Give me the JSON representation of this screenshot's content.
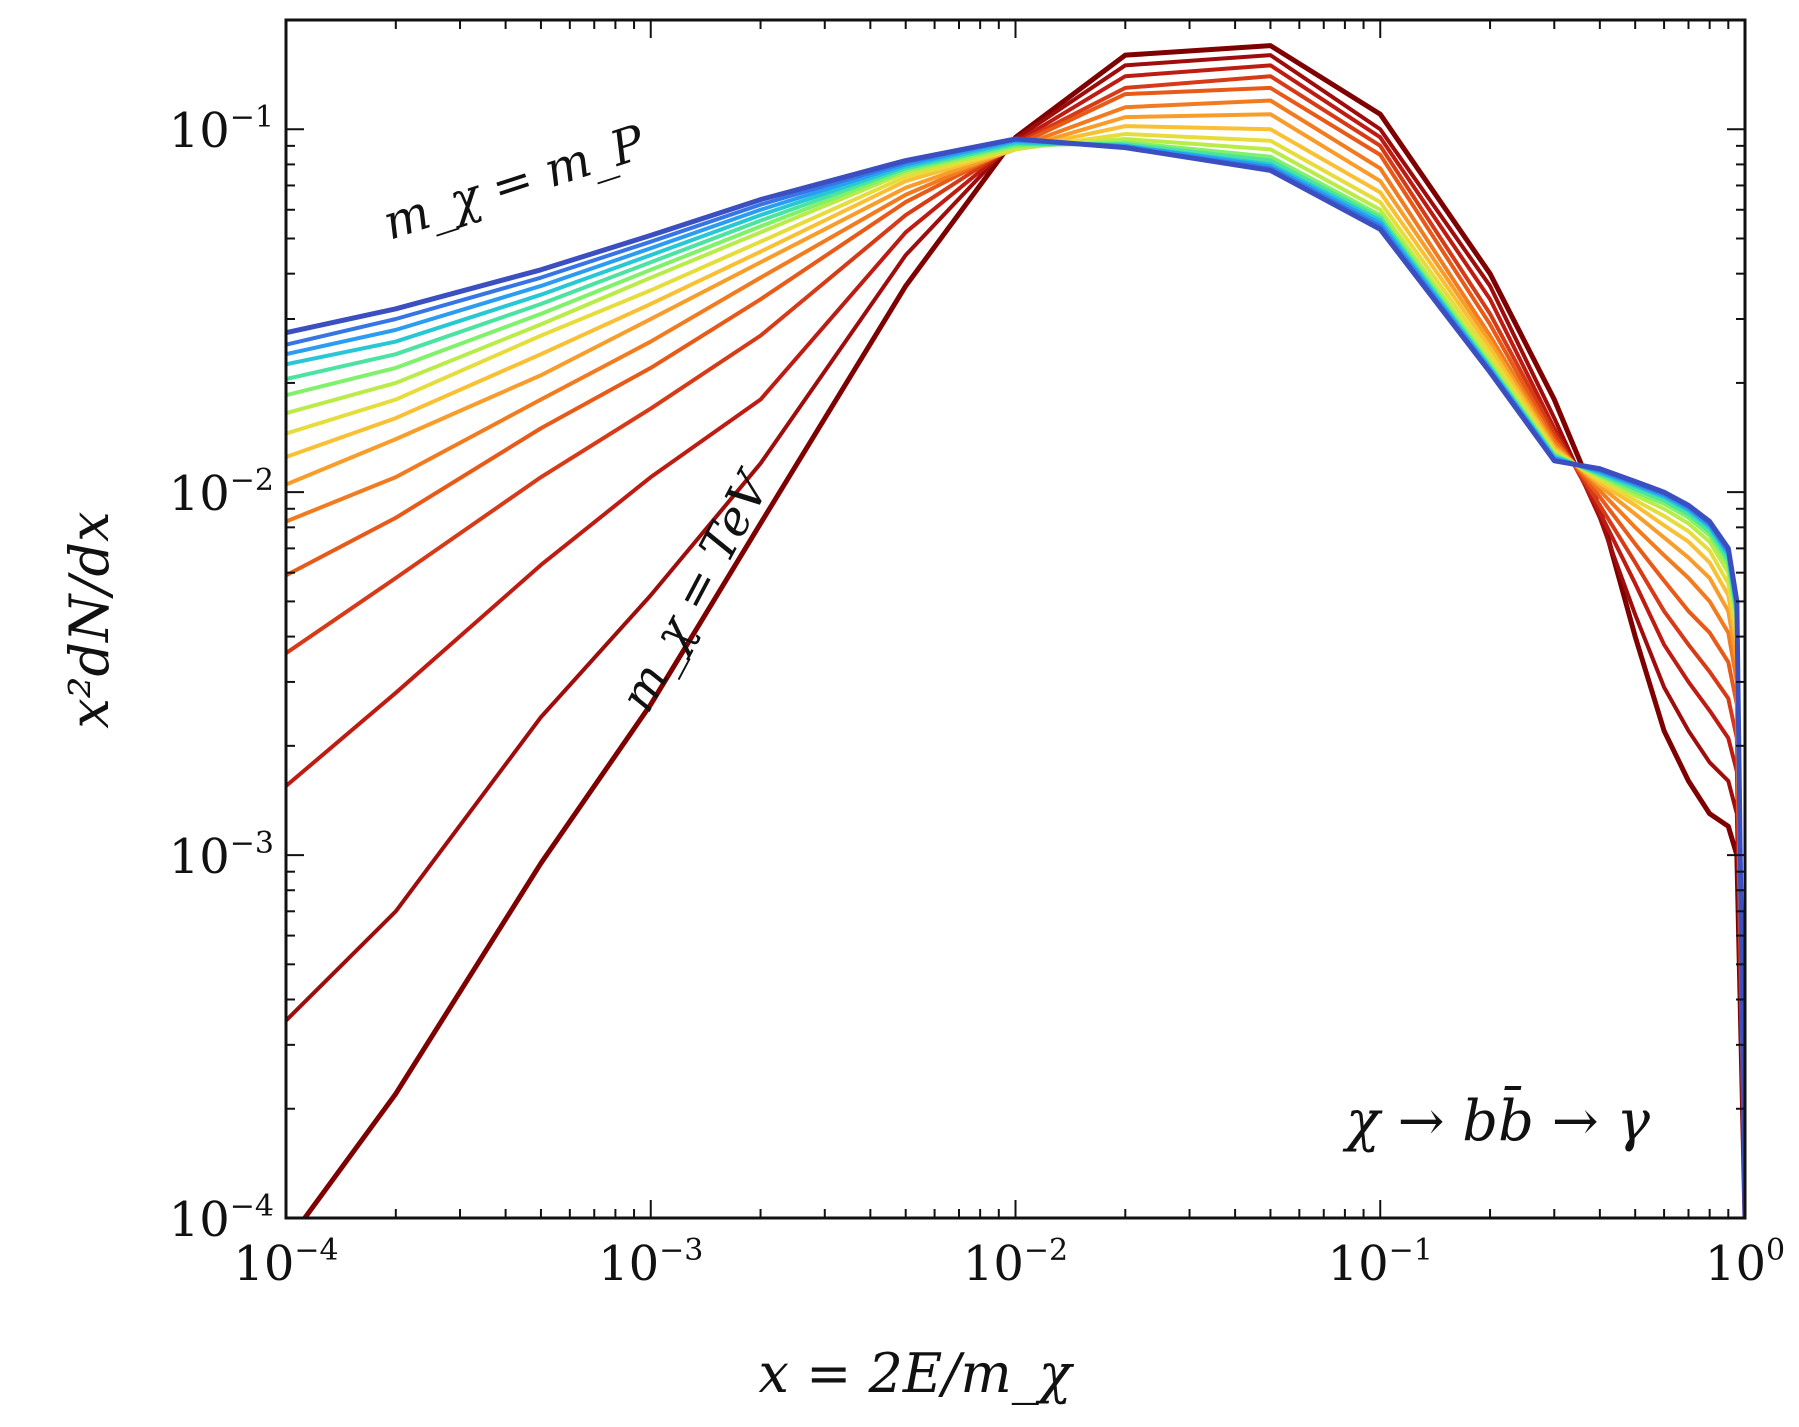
{
  "chart_data": {
    "type": "line",
    "xlabel": "x = 2E/m_χ",
    "ylabel": "x²dN/dx",
    "x_scale": "log",
    "y_scale": "log",
    "xlim": [
      0.0001,
      1
    ],
    "ylim": [
      0.0001,
      0.2
    ],
    "grid": false,
    "legend": "none",
    "x_ticks": [
      {
        "value": 0.0001,
        "base": "10",
        "exp": "−4"
      },
      {
        "value": 0.001,
        "base": "10",
        "exp": "−3"
      },
      {
        "value": 0.01,
        "base": "10",
        "exp": "−2"
      },
      {
        "value": 0.1,
        "base": "10",
        "exp": "−1"
      },
      {
        "value": 1,
        "base": "10",
        "exp": "0"
      }
    ],
    "y_ticks": [
      {
        "value": 0.1,
        "base": "10",
        "exp": "−1"
      },
      {
        "value": 0.01,
        "base": "10",
        "exp": "−2"
      },
      {
        "value": 0.001,
        "base": "10",
        "exp": "−3"
      },
      {
        "value": 0.0001,
        "base": "10",
        "exp": "−4"
      }
    ],
    "annotations": {
      "planck": "m_χ = m_P",
      "tev": "m_χ = TeV",
      "process": "χ → bb̄ → γ"
    },
    "series": [
      {
        "color": "#7f0000",
        "x": [
          0.0001,
          0.0002,
          0.0005,
          0.001,
          0.002,
          0.005,
          0.01,
          0.02,
          0.05,
          0.1,
          0.2,
          0.3,
          0.4,
          0.5,
          0.6,
          0.7,
          0.8,
          0.9,
          0.95,
          1
        ],
        "y": [
          8.5e-05,
          0.00022,
          0.00095,
          0.0026,
          0.0082,
          0.037,
          0.095,
          0.16,
          0.17,
          0.11,
          0.04,
          0.018,
          0.009,
          0.004,
          0.0022,
          0.0016,
          0.0013,
          0.0012,
          0.001,
          0.0001
        ]
      },
      {
        "color": "#9f0c0c",
        "x": [
          0.0001,
          0.0002,
          0.0005,
          0.001,
          0.002,
          0.005,
          0.01,
          0.02,
          0.05,
          0.1,
          0.2,
          0.3,
          0.4,
          0.5,
          0.6,
          0.7,
          0.8,
          0.9,
          0.95,
          1
        ],
        "y": [
          0.00035,
          0.0007,
          0.0024,
          0.0052,
          0.012,
          0.045,
          0.094,
          0.15,
          0.16,
          0.1,
          0.037,
          0.016,
          0.0085,
          0.0046,
          0.0029,
          0.0022,
          0.0018,
          0.0016,
          0.0013,
          0.0001
        ]
      },
      {
        "color": "#be1c12",
        "x": [
          0.0001,
          0.0002,
          0.0005,
          0.001,
          0.002,
          0.005,
          0.01,
          0.02,
          0.05,
          0.1,
          0.2,
          0.3,
          0.4,
          0.5,
          0.6,
          0.7,
          0.8,
          0.9,
          0.95,
          1
        ],
        "y": [
          0.00155,
          0.0028,
          0.0063,
          0.011,
          0.018,
          0.052,
          0.092,
          0.14,
          0.15,
          0.095,
          0.034,
          0.015,
          0.0088,
          0.0056,
          0.0038,
          0.003,
          0.0025,
          0.0021,
          0.0017,
          0.0001
        ]
      },
      {
        "color": "#d63a16",
        "x": [
          0.0001,
          0.0002,
          0.0005,
          0.001,
          0.002,
          0.005,
          0.01,
          0.02,
          0.05,
          0.1,
          0.2,
          0.3,
          0.4,
          0.5,
          0.6,
          0.7,
          0.8,
          0.9,
          0.95,
          1
        ],
        "y": [
          0.0036,
          0.0058,
          0.011,
          0.017,
          0.027,
          0.058,
          0.091,
          0.13,
          0.14,
          0.09,
          0.031,
          0.0145,
          0.0092,
          0.0064,
          0.0047,
          0.0038,
          0.0032,
          0.0027,
          0.0021,
          0.0001
        ]
      },
      {
        "color": "#e85a18",
        "x": [
          0.0001,
          0.0002,
          0.0005,
          0.001,
          0.002,
          0.005,
          0.01,
          0.02,
          0.05,
          0.1,
          0.2,
          0.3,
          0.4,
          0.5,
          0.6,
          0.7,
          0.8,
          0.9,
          0.95,
          1
        ],
        "y": [
          0.0059,
          0.0085,
          0.015,
          0.022,
          0.034,
          0.063,
          0.09,
          0.125,
          0.13,
          0.085,
          0.029,
          0.014,
          0.0097,
          0.0072,
          0.0057,
          0.0047,
          0.0041,
          0.0034,
          0.0026,
          0.0001
        ]
      },
      {
        "color": "#f27b1f",
        "x": [
          0.0001,
          0.0002,
          0.0005,
          0.001,
          0.002,
          0.005,
          0.01,
          0.02,
          0.05,
          0.1,
          0.2,
          0.3,
          0.4,
          0.5,
          0.6,
          0.7,
          0.8,
          0.9,
          0.95,
          1
        ],
        "y": [
          0.0083,
          0.011,
          0.018,
          0.026,
          0.039,
          0.066,
          0.089,
          0.115,
          0.12,
          0.078,
          0.027,
          0.0137,
          0.0101,
          0.008,
          0.0067,
          0.0058,
          0.005,
          0.0041,
          0.003,
          0.0001
        ]
      },
      {
        "color": "#f89d2a",
        "x": [
          0.0001,
          0.0002,
          0.0005,
          0.001,
          0.002,
          0.005,
          0.01,
          0.02,
          0.05,
          0.1,
          0.2,
          0.3,
          0.4,
          0.5,
          0.6,
          0.7,
          0.8,
          0.9,
          0.95,
          1
        ],
        "y": [
          0.0105,
          0.014,
          0.021,
          0.03,
          0.043,
          0.069,
          0.088,
          0.108,
          0.11,
          0.072,
          0.026,
          0.0134,
          0.0104,
          0.0087,
          0.0075,
          0.0066,
          0.0058,
          0.0047,
          0.0034,
          0.0001
        ]
      },
      {
        "color": "#f9c033",
        "x": [
          0.0001,
          0.0002,
          0.0005,
          0.001,
          0.002,
          0.005,
          0.01,
          0.02,
          0.05,
          0.1,
          0.2,
          0.3,
          0.4,
          0.5,
          0.6,
          0.7,
          0.8,
          0.9,
          0.95,
          1
        ],
        "y": [
          0.0125,
          0.016,
          0.024,
          0.033,
          0.046,
          0.072,
          0.088,
          0.102,
          0.1,
          0.067,
          0.025,
          0.0132,
          0.0106,
          0.0092,
          0.0081,
          0.0073,
          0.0064,
          0.0052,
          0.0038,
          0.0001
        ]
      },
      {
        "color": "#e6dd3c",
        "x": [
          0.0001,
          0.0002,
          0.0005,
          0.001,
          0.002,
          0.005,
          0.01,
          0.02,
          0.05,
          0.1,
          0.2,
          0.3,
          0.4,
          0.5,
          0.6,
          0.7,
          0.8,
          0.9,
          0.95,
          1
        ],
        "y": [
          0.0145,
          0.018,
          0.027,
          0.036,
          0.049,
          0.074,
          0.088,
          0.097,
          0.093,
          0.063,
          0.024,
          0.013,
          0.0108,
          0.0095,
          0.0086,
          0.0078,
          0.0069,
          0.0056,
          0.0041,
          0.0001
        ]
      },
      {
        "color": "#b9ec49",
        "x": [
          0.0001,
          0.0002,
          0.0005,
          0.001,
          0.002,
          0.005,
          0.01,
          0.02,
          0.05,
          0.1,
          0.2,
          0.3,
          0.4,
          0.5,
          0.6,
          0.7,
          0.8,
          0.9,
          0.95,
          1
        ],
        "y": [
          0.0165,
          0.02,
          0.029,
          0.039,
          0.052,
          0.076,
          0.089,
          0.094,
          0.088,
          0.06,
          0.023,
          0.0128,
          0.011,
          0.0098,
          0.009,
          0.0082,
          0.0073,
          0.006,
          0.0043,
          0.0001
        ]
      },
      {
        "color": "#7ff16a",
        "x": [
          0.0001,
          0.0002,
          0.0005,
          0.001,
          0.002,
          0.005,
          0.01,
          0.02,
          0.05,
          0.1,
          0.2,
          0.3,
          0.4,
          0.5,
          0.6,
          0.7,
          0.8,
          0.9,
          0.95,
          1
        ],
        "y": [
          0.0185,
          0.022,
          0.031,
          0.041,
          0.054,
          0.077,
          0.09,
          0.092,
          0.084,
          0.058,
          0.0225,
          0.0127,
          0.0111,
          0.01,
          0.0093,
          0.0085,
          0.0076,
          0.0063,
          0.0045,
          0.0001
        ]
      },
      {
        "color": "#4ae3a1",
        "x": [
          0.0001,
          0.0002,
          0.0005,
          0.001,
          0.002,
          0.005,
          0.01,
          0.02,
          0.05,
          0.1,
          0.2,
          0.3,
          0.4,
          0.5,
          0.6,
          0.7,
          0.8,
          0.9,
          0.95,
          1
        ],
        "y": [
          0.0205,
          0.024,
          0.033,
          0.043,
          0.056,
          0.078,
          0.091,
          0.091,
          0.082,
          0.057,
          0.0222,
          0.0126,
          0.0112,
          0.0102,
          0.0095,
          0.0087,
          0.0078,
          0.0065,
          0.0046,
          0.0001
        ]
      },
      {
        "color": "#27c8d6",
        "x": [
          0.0001,
          0.0002,
          0.0005,
          0.001,
          0.002,
          0.005,
          0.01,
          0.02,
          0.05,
          0.1,
          0.2,
          0.3,
          0.4,
          0.5,
          0.6,
          0.7,
          0.8,
          0.9,
          0.95,
          1
        ],
        "y": [
          0.0225,
          0.026,
          0.035,
          0.045,
          0.058,
          0.079,
          0.092,
          0.09,
          0.08,
          0.056,
          0.022,
          0.0125,
          0.0113,
          0.0104,
          0.0097,
          0.0089,
          0.008,
          0.0067,
          0.0047,
          0.0001
        ]
      },
      {
        "color": "#2a9df2",
        "x": [
          0.0001,
          0.0002,
          0.0005,
          0.001,
          0.002,
          0.005,
          0.01,
          0.02,
          0.05,
          0.1,
          0.2,
          0.3,
          0.4,
          0.5,
          0.6,
          0.7,
          0.8,
          0.9,
          0.95,
          1
        ],
        "y": [
          0.024,
          0.028,
          0.037,
          0.047,
          0.06,
          0.08,
          0.093,
          0.09,
          0.079,
          0.055,
          0.0218,
          0.0124,
          0.0114,
          0.0105,
          0.0098,
          0.009,
          0.0081,
          0.0068,
          0.0048,
          0.0001
        ]
      },
      {
        "color": "#3675e6",
        "x": [
          0.0001,
          0.0002,
          0.0005,
          0.001,
          0.002,
          0.005,
          0.01,
          0.02,
          0.05,
          0.1,
          0.2,
          0.3,
          0.4,
          0.5,
          0.6,
          0.7,
          0.8,
          0.9,
          0.95,
          1
        ],
        "y": [
          0.0255,
          0.03,
          0.039,
          0.049,
          0.062,
          0.081,
          0.094,
          0.089,
          0.078,
          0.054,
          0.0216,
          0.0123,
          0.0115,
          0.0106,
          0.0099,
          0.0091,
          0.0082,
          0.0069,
          0.0049,
          0.0001
        ]
      },
      {
        "color": "#3b4fc0",
        "x": [
          0.0001,
          0.0002,
          0.0005,
          0.001,
          0.002,
          0.005,
          0.01,
          0.02,
          0.05,
          0.1,
          0.2,
          0.3,
          0.4,
          0.5,
          0.6,
          0.7,
          0.8,
          0.9,
          0.95,
          1
        ],
        "y": [
          0.0275,
          0.032,
          0.041,
          0.051,
          0.064,
          0.082,
          0.094,
          0.089,
          0.077,
          0.053,
          0.0214,
          0.0122,
          0.0116,
          0.0107,
          0.01,
          0.0092,
          0.0083,
          0.007,
          0.005,
          0.0001
        ]
      }
    ]
  }
}
